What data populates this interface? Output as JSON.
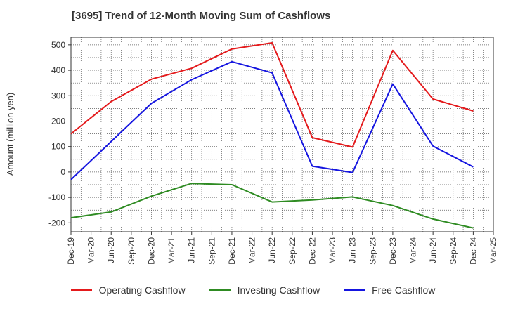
{
  "chart_data": {
    "type": "line",
    "title": "[3695]  Trend of 12-Month Moving Sum of Cashflows",
    "ylabel": "Amount (million yen)",
    "xlabel": "",
    "x_ticks": [
      "Dec-19",
      "Mar-20",
      "Jun-20",
      "Sep-20",
      "Dec-20",
      "Mar-21",
      "Jun-21",
      "Sep-21",
      "Dec-21",
      "Mar-22",
      "Jun-22",
      "Sep-22",
      "Dec-22",
      "Mar-23",
      "Jun-23",
      "Sep-23",
      "Dec-23",
      "Mar-24",
      "Jun-24",
      "Sep-24",
      "Dec-24",
      "Mar-25"
    ],
    "y_ticks": [
      500,
      400,
      300,
      200,
      100,
      0,
      -100,
      -200
    ],
    "ylim": [
      -235,
      530
    ],
    "grid": true,
    "legend_position": "bottom",
    "series": [
      {
        "name": "Operating Cashflow",
        "color": "#e41a1c",
        "x": [
          "Dec-19",
          "Jun-20",
          "Dec-20",
          "Jun-21",
          "Dec-21",
          "Jun-22",
          "Dec-22",
          "Jun-23",
          "Dec-23",
          "Jun-24",
          "Dec-24"
        ],
        "values": [
          150,
          277,
          365,
          408,
          484,
          508,
          135,
          98,
          478,
          287,
          240
        ]
      },
      {
        "name": "Investing Cashflow",
        "color": "#2e8b22",
        "x": [
          "Dec-19",
          "Jun-20",
          "Dec-20",
          "Jun-21",
          "Dec-21",
          "Jun-22",
          "Dec-22",
          "Jun-23",
          "Dec-23",
          "Jun-24",
          "Dec-24"
        ],
        "values": [
          -180,
          -157,
          -95,
          -45,
          -50,
          -118,
          -110,
          -98,
          -132,
          -185,
          -220
        ]
      },
      {
        "name": "Free Cashflow",
        "color": "#1515e0",
        "x": [
          "Dec-19",
          "Jun-20",
          "Dec-20",
          "Jun-21",
          "Dec-21",
          "Jun-22",
          "Dec-22",
          "Jun-23",
          "Dec-23",
          "Jun-24",
          "Dec-24"
        ],
        "values": [
          -30,
          120,
          270,
          363,
          434,
          390,
          23,
          -2,
          346,
          102,
          20
        ]
      }
    ]
  }
}
